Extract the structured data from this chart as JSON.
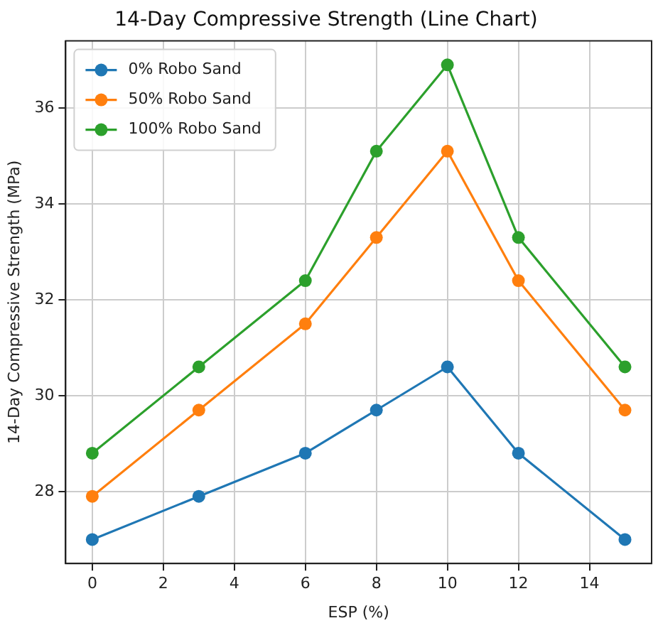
{
  "chart_data": {
    "type": "line",
    "title": "14-Day Compressive Strength (Line Chart)",
    "xlabel": "ESP (%)",
    "ylabel": "14-Day Compressive Strength (MPa)",
    "x": [
      0,
      3,
      6,
      8,
      10,
      12,
      15
    ],
    "series": [
      {
        "name": "0% Robo Sand",
        "color": "#1f77b4",
        "values": [
          27.0,
          27.9,
          28.8,
          29.7,
          30.6,
          28.8,
          27.0
        ]
      },
      {
        "name": "50% Robo Sand",
        "color": "#ff7f0e",
        "values": [
          27.9,
          29.7,
          31.5,
          33.3,
          35.1,
          32.4,
          29.7
        ]
      },
      {
        "name": "100% Robo Sand",
        "color": "#2ca02c",
        "values": [
          28.8,
          30.6,
          32.4,
          35.1,
          36.9,
          33.3,
          30.6
        ]
      }
    ],
    "xlim": [
      -0.75,
      15.75
    ],
    "xticks": [
      0,
      2,
      4,
      6,
      8,
      10,
      12,
      14
    ],
    "ylim": [
      26.5,
      37.4
    ],
    "yticks": [
      28,
      30,
      32,
      34,
      36
    ],
    "grid": true,
    "legend": "top left",
    "marker": "circle",
    "line_style": "solid"
  }
}
